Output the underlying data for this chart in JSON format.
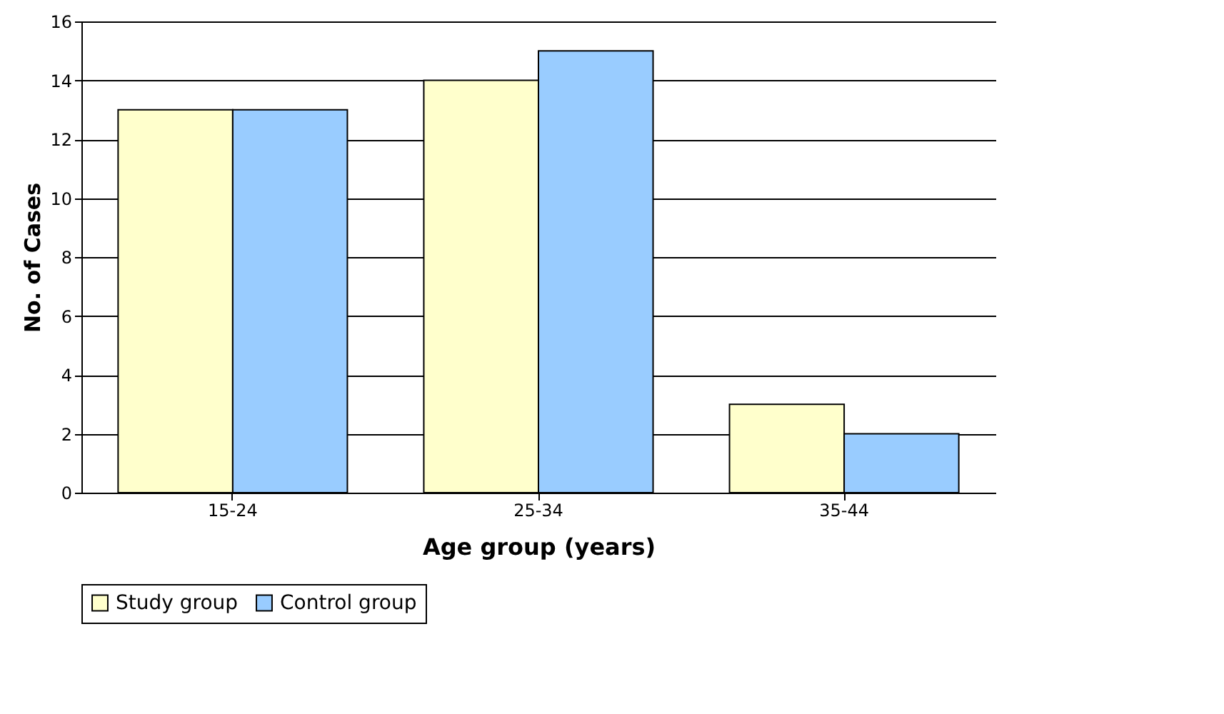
{
  "chart_data": {
    "type": "bar",
    "xlabel": "Age group (years)",
    "ylabel": "No. of Cases",
    "categories": [
      "15-24",
      "25-34",
      "35-44"
    ],
    "series": [
      {
        "name": "Study group",
        "color": "#ffffcc",
        "values": [
          13,
          14,
          3
        ]
      },
      {
        "name": "Control group",
        "color": "#99ccff",
        "values": [
          13,
          15,
          2
        ]
      }
    ],
    "ylim": [
      0,
      16
    ],
    "yticks": [
      0,
      2,
      4,
      6,
      8,
      10,
      12,
      14,
      16
    ],
    "grid": "y",
    "legend": "bottom"
  }
}
